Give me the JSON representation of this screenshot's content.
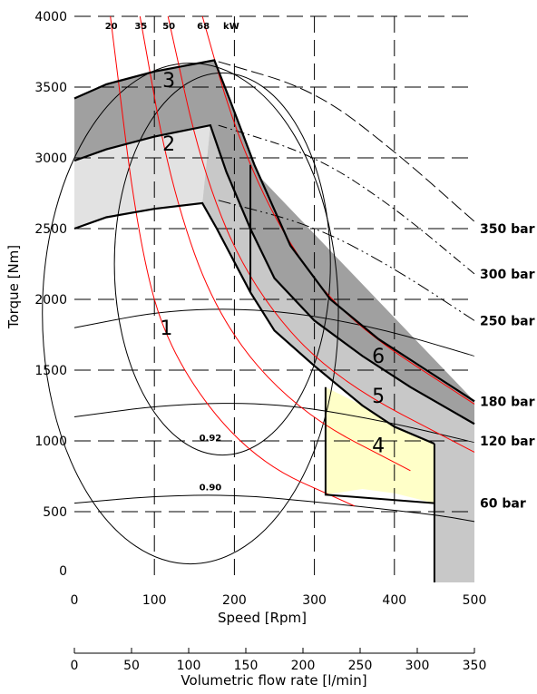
{
  "chart_data": {
    "type": "line",
    "title": "",
    "xlabel": "Speed [Rpm]",
    "ylabel": "Torque [Nm]",
    "xlim": [
      0,
      500
    ],
    "ylim": [
      0,
      4000
    ],
    "x_ticks": [
      "0",
      "100",
      "200",
      "300",
      "400",
      "500"
    ],
    "y_ticks": [
      "0",
      "500",
      "1000",
      "1500",
      "2000",
      "2500",
      "3000",
      "3500",
      "4000"
    ],
    "secondary_axis": {
      "label": "Volumetric flow rate [l/min]",
      "range": [
        0,
        350
      ],
      "ticks": [
        "0",
        "50",
        "100",
        "150",
        "200",
        "250",
        "300",
        "350"
      ]
    },
    "grid": "dashed",
    "pressure_lines": [
      {
        "label": "350 bar",
        "points": [
          [
            180,
            3680
          ],
          [
            300,
            3480
          ],
          [
            400,
            3050
          ],
          [
            500,
            2550
          ]
        ]
      },
      {
        "label": "300 bar",
        "points": [
          [
            180,
            3230
          ],
          [
            300,
            3020
          ],
          [
            400,
            2650
          ],
          [
            500,
            2180
          ]
        ]
      },
      {
        "label": "250 bar",
        "points": [
          [
            180,
            2700
          ],
          [
            300,
            2520
          ],
          [
            400,
            2220
          ],
          [
            500,
            1850
          ]
        ]
      },
      {
        "label": "180 bar",
        "points": [
          [
            500,
            1280
          ]
        ]
      },
      {
        "label": "120 bar",
        "points": [
          [
            500,
            1120
          ]
        ]
      },
      {
        "label": "60 bar",
        "points": [
          [
            0,
            560
          ],
          [
            100,
            610
          ],
          [
            200,
            620
          ],
          [
            300,
            570
          ],
          [
            450,
            480
          ],
          [
            500,
            430
          ]
        ]
      }
    ],
    "power_curves_kw": [
      {
        "label": "20",
        "points": [
          [
            45,
            4000
          ],
          [
            80,
            2400
          ],
          [
            120,
            1600
          ],
          [
            220,
            870
          ],
          [
            350,
            540
          ]
        ]
      },
      {
        "label": "35",
        "points": [
          [
            82,
            4000
          ],
          [
            120,
            2800
          ],
          [
            180,
            1850
          ],
          [
            280,
            1200
          ],
          [
            420,
            790
          ]
        ]
      },
      {
        "label": "50",
        "points": [
          [
            117,
            4000
          ],
          [
            160,
            2900
          ],
          [
            220,
            2100
          ],
          [
            320,
            1450
          ],
          [
            500,
            920
          ]
        ]
      },
      {
        "label": "68",
        "points": [
          [
            160,
            4000
          ],
          [
            200,
            3200
          ],
          [
            260,
            2450
          ],
          [
            340,
            1850
          ],
          [
            500,
            1260
          ]
        ]
      }
    ],
    "power_label_unit": "kW",
    "efficiency_contours": [
      {
        "label": "0.92"
      },
      {
        "label": "0.90"
      }
    ],
    "regions": [
      {
        "label": "1"
      },
      {
        "label": "2"
      },
      {
        "label": "3"
      },
      {
        "label": "4"
      },
      {
        "label": "5"
      },
      {
        "label": "6"
      }
    ],
    "operating_envelopes": [
      {
        "name": "250 bar",
        "points": [
          [
            0,
            2500
          ],
          [
            40,
            2580
          ],
          [
            100,
            2640
          ],
          [
            160,
            2680
          ],
          [
            178,
            2500
          ],
          [
            220,
            2050
          ],
          [
            250,
            1780
          ],
          [
            300,
            1530
          ],
          [
            360,
            1250
          ],
          [
            400,
            1100
          ],
          [
            450,
            980
          ]
        ]
      },
      {
        "name": "300 bar",
        "points": [
          [
            0,
            2980
          ],
          [
            40,
            3060
          ],
          [
            100,
            3150
          ],
          [
            170,
            3230
          ],
          [
            190,
            2900
          ],
          [
            220,
            2500
          ],
          [
            250,
            2150
          ],
          [
            300,
            1850
          ],
          [
            360,
            1600
          ],
          [
            420,
            1380
          ],
          [
            500,
            1120
          ]
        ]
      },
      {
        "name": "350 bar",
        "points": [
          [
            0,
            3420
          ],
          [
            40,
            3520
          ],
          [
            100,
            3610
          ],
          [
            175,
            3690
          ],
          [
            195,
            3400
          ],
          [
            225,
            2950
          ],
          [
            270,
            2380
          ],
          [
            320,
            2000
          ],
          [
            380,
            1720
          ],
          [
            440,
            1500
          ],
          [
            500,
            1280
          ]
        ]
      }
    ]
  },
  "colors": {
    "dark_fill": "#a0a0a0",
    "light_fill": "#e2e2e2",
    "mid_fill": "#c8c8c8",
    "yellow_fill": "#ffffc8",
    "power_curve": "#ff0000",
    "envelope": "#000000"
  }
}
